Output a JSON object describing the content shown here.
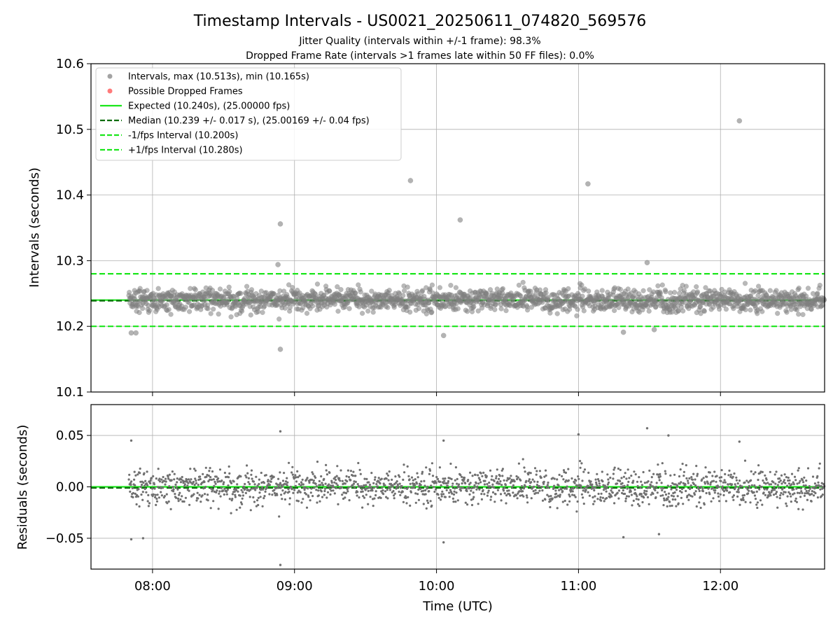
{
  "chart_data": [
    {
      "type": "scatter",
      "title": "Timestamp Intervals - US0021_20250611_074820_569576",
      "subtitle_lines": [
        "Jitter Quality (intervals within +/-1 frame): 98.3%",
        "Dropped Frame Rate (intervals >1 frames late within 50 FF files): 0.0%"
      ],
      "ylabel": "Intervals (seconds)",
      "xlim": [
        "07:34",
        "12:44"
      ],
      "ylim": [
        10.1,
        10.6
      ],
      "yticks": [
        "10.1",
        "10.2",
        "10.3",
        "10.4",
        "10.5",
        "10.6"
      ],
      "grid": true,
      "legend_position": "top-left",
      "legend": [
        {
          "label": "Intervals, max (10.513s), min (10.165s)",
          "kind": "marker",
          "color": "#999999"
        },
        {
          "label": "Possible Dropped Frames",
          "kind": "marker",
          "color": "#ff6b6b"
        },
        {
          "label": "Expected (10.240s), (25.00000 fps)",
          "kind": "solid",
          "color": "#1ae61a"
        },
        {
          "label": "Median (10.239 +/- 0.017 s), (25.00169 +/- 0.04 fps)",
          "kind": "dashed",
          "color": "#0a6b0a"
        },
        {
          "label": "-1/fps Interval (10.200s)",
          "kind": "dashed",
          "color": "#1ae61a"
        },
        {
          "label": "+1/fps Interval (10.280s)",
          "kind": "dashed",
          "color": "#1ae61a"
        }
      ],
      "reference_lines": [
        {
          "name": "expected",
          "y": 10.24,
          "style": "solid",
          "color": "#1ae61a"
        },
        {
          "name": "median",
          "y": 10.239,
          "style": "dashed",
          "color": "#0a6b0a"
        },
        {
          "name": "minus_one_fps",
          "y": 10.2,
          "style": "dashed",
          "color": "#1ae61a"
        },
        {
          "name": "plus_one_fps",
          "y": 10.28,
          "style": "dashed",
          "color": "#1ae61a"
        }
      ],
      "series": [
        {
          "name": "Intervals",
          "color": "#808080",
          "x_range": [
            "07:50",
            "12:44"
          ],
          "sample_interval_s": 10.24,
          "center": 10.24,
          "spread": 0.017,
          "outliers": [
            {
              "x": "07:51",
              "y": 10.19
            },
            {
              "x": "07:53",
              "y": 10.19
            },
            {
              "x": "08:54",
              "y": 10.356
            },
            {
              "x": "08:53",
              "y": 10.294
            },
            {
              "x": "08:54",
              "y": 10.165
            },
            {
              "x": "09:49",
              "y": 10.422
            },
            {
              "x": "10:10",
              "y": 10.362
            },
            {
              "x": "10:03",
              "y": 10.186
            },
            {
              "x": "11:04",
              "y": 10.417
            },
            {
              "x": "11:29",
              "y": 10.297
            },
            {
              "x": "12:08",
              "y": 10.513
            },
            {
              "x": "11:32",
              "y": 10.195
            },
            {
              "x": "11:19",
              "y": 10.191
            }
          ]
        }
      ]
    },
    {
      "type": "scatter",
      "xlabel": "Time (UTC)",
      "ylabel": "Residuals (seconds)",
      "xlim": [
        "07:34",
        "12:44"
      ],
      "xticks": [
        "08:00",
        "09:00",
        "10:00",
        "11:00",
        "12:00"
      ],
      "ylim": [
        -0.08,
        0.08
      ],
      "yticks": [
        "0.05",
        "0.00",
        "−0.05"
      ],
      "grid": true,
      "reference_lines": [
        {
          "name": "zero",
          "y": 0.0,
          "style": "solid",
          "color": "#1ae61a"
        },
        {
          "name": "median_offset",
          "y": -0.001,
          "style": "dashed",
          "color": "#0a6b0a"
        }
      ],
      "series": [
        {
          "name": "Residuals",
          "color": "#707070",
          "x_range": [
            "07:50",
            "12:44"
          ],
          "spread": 0.017,
          "outliers": [
            {
              "x": "07:51",
              "y": 0.045
            },
            {
              "x": "07:51",
              "y": -0.051
            },
            {
              "x": "07:56",
              "y": -0.05
            },
            {
              "x": "08:54",
              "y": 0.054
            },
            {
              "x": "08:54",
              "y": -0.076
            },
            {
              "x": "10:03",
              "y": 0.045
            },
            {
              "x": "10:03",
              "y": -0.054
            },
            {
              "x": "11:00",
              "y": 0.051
            },
            {
              "x": "11:29",
              "y": 0.057
            },
            {
              "x": "11:19",
              "y": -0.049
            },
            {
              "x": "11:34",
              "y": -0.046
            },
            {
              "x": "11:38",
              "y": 0.05
            },
            {
              "x": "12:08",
              "y": 0.044
            }
          ]
        }
      ]
    }
  ]
}
